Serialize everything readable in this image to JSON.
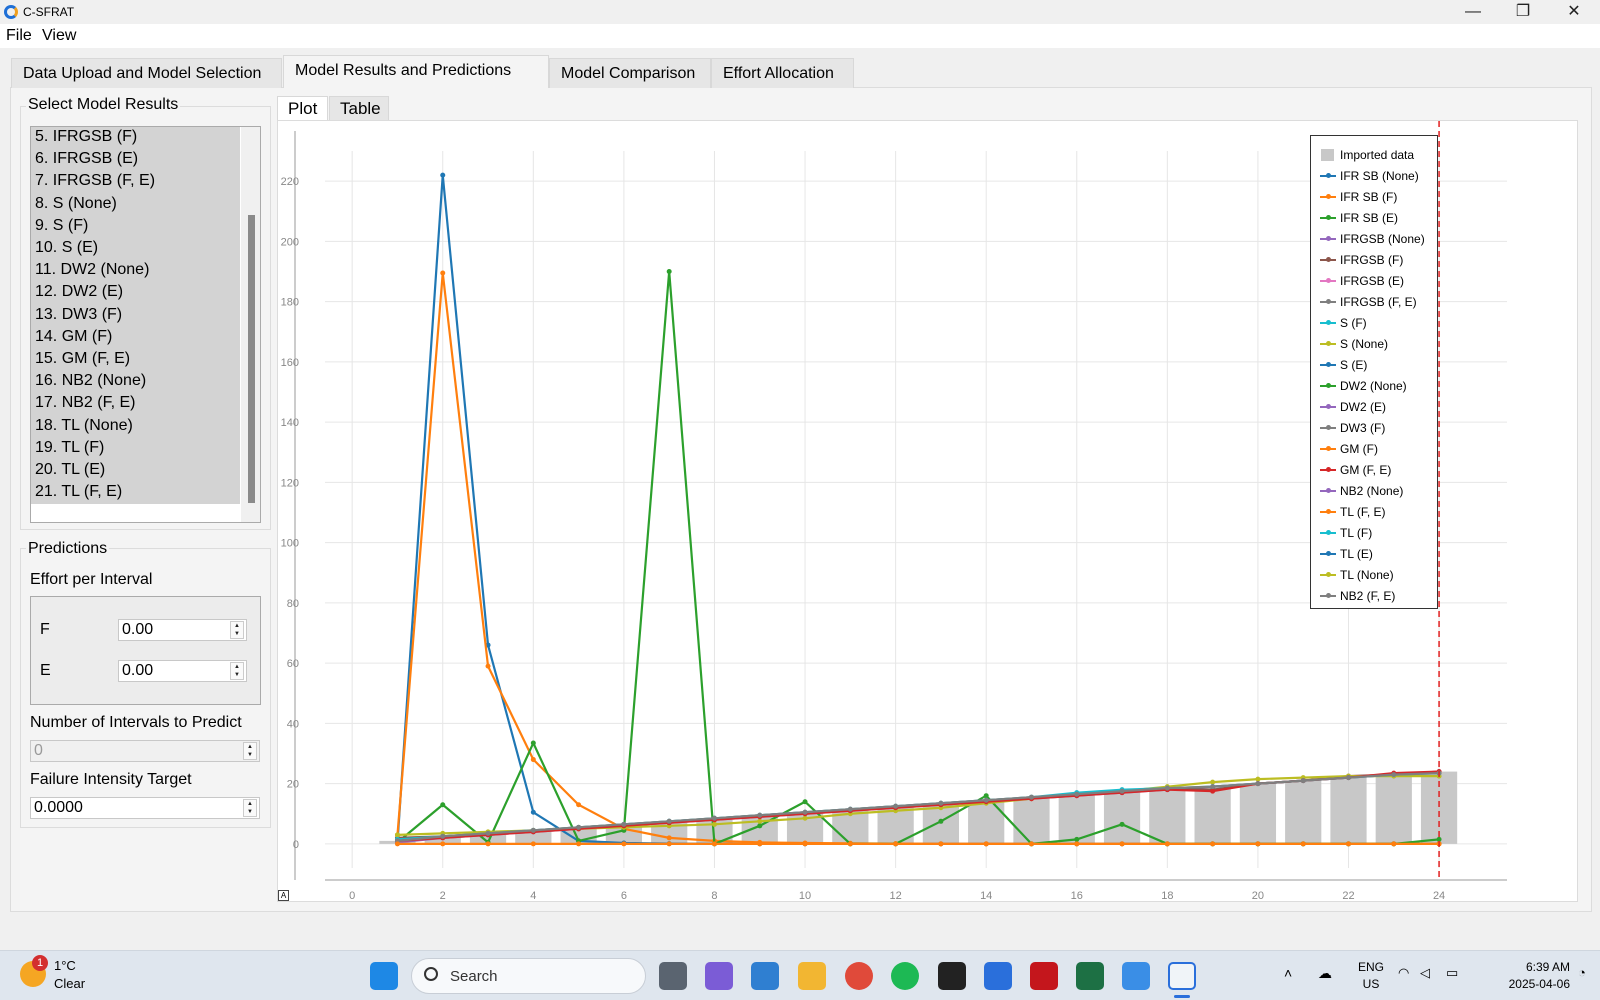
{
  "window": {
    "title": "C-SFRAT",
    "minimize": "—",
    "restore": "❐",
    "close": "✕"
  },
  "menu": {
    "file": "File",
    "view": "View"
  },
  "tabs": [
    {
      "label": "Data Upload and Model Selection"
    },
    {
      "label": "Model Results and Predictions"
    },
    {
      "label": "Model Comparison"
    },
    {
      "label": "Effort Allocation"
    }
  ],
  "left_panel": {
    "select_title": "Select Model Results",
    "models": [
      "5. IFRGSB (F)",
      "6. IFRGSB (E)",
      "7. IFRGSB (F, E)",
      "8. S (None)",
      "9. S (F)",
      "10. S (E)",
      "11. DW2 (None)",
      "12. DW2 (E)",
      "13. DW3 (F)",
      "14. GM (F)",
      "15. GM (F, E)",
      "16. NB2 (None)",
      "17. NB2 (F, E)",
      "18. TL (None)",
      "19. TL (F)",
      "20. TL (E)",
      "21. TL (F, E)"
    ],
    "predictions_title": "Predictions",
    "effort_title": "Effort per Interval",
    "f_label": "F",
    "f_value": "0.00",
    "e_label": "E",
    "e_value": "0.00",
    "intervals_label": "Number of Intervals to Predict",
    "intervals_value": "0",
    "intensity_label": "Failure Intensity Target",
    "intensity_value": "0.0000"
  },
  "subtabs": {
    "plot": "Plot",
    "table": "Table"
  },
  "plot": {
    "corner": "A"
  },
  "legend": [
    {
      "label": "Imported data",
      "color": "#c8c8c8",
      "box": true
    },
    {
      "label": "IFR SB (None)",
      "color": "#1f77b4"
    },
    {
      "label": "IFR SB (F)",
      "color": "#ff7f0e"
    },
    {
      "label": "IFR SB (E)",
      "color": "#2ca02c"
    },
    {
      "label": "IFRGSB (None)",
      "color": "#9467bd"
    },
    {
      "label": "IFRGSB (F)",
      "color": "#8c564b"
    },
    {
      "label": "IFRGSB (E)",
      "color": "#e377c2"
    },
    {
      "label": "IFRGSB (F, E)",
      "color": "#7f7f7f"
    },
    {
      "label": "S (F)",
      "color": "#17becf"
    },
    {
      "label": "S (None)",
      "color": "#bcbd22"
    },
    {
      "label": "S (E)",
      "color": "#1f77b4"
    },
    {
      "label": "DW2 (None)",
      "color": "#2ca02c"
    },
    {
      "label": "DW2 (E)",
      "color": "#9467bd"
    },
    {
      "label": "DW3 (F)",
      "color": "#7f7f7f"
    },
    {
      "label": "GM (F)",
      "color": "#ff7f0e"
    },
    {
      "label": "GM (F, E)",
      "color": "#d62728"
    },
    {
      "label": "NB2 (None)",
      "color": "#9467bd"
    },
    {
      "label": "TL (F, E)",
      "color": "#ff7f0e"
    },
    {
      "label": "TL (F)",
      "color": "#17becf"
    },
    {
      "label": "TL (E)",
      "color": "#1f77b4"
    },
    {
      "label": "TL (None)",
      "color": "#bcbd22"
    },
    {
      "label": "NB2 (F, E)",
      "color": "#7f7f7f"
    }
  ],
  "chart_data": {
    "type": "line",
    "x_ticks": [
      0,
      2,
      4,
      6,
      8,
      10,
      12,
      14,
      16,
      18,
      20,
      22,
      24
    ],
    "y_ticks": [
      0,
      20,
      40,
      60,
      80,
      100,
      120,
      140,
      160,
      180,
      200,
      220
    ],
    "xlim": [
      -0.6,
      25.5
    ],
    "ylim": [
      -8,
      230
    ],
    "grid": true,
    "legend_position": "top-right",
    "vertical_marker_x": 24,
    "bars": {
      "name": "Imported data",
      "x": [
        1,
        2,
        3,
        4,
        5,
        6,
        7,
        8,
        9,
        10,
        11,
        12,
        13,
        14,
        15,
        16,
        17,
        18,
        19,
        20,
        21,
        22,
        23,
        24
      ],
      "values": [
        1,
        2,
        3,
        4,
        5,
        6,
        7,
        8,
        9,
        10,
        11,
        12,
        13,
        14,
        15,
        16,
        17,
        18,
        19,
        20,
        21,
        22,
        23,
        24
      ]
    },
    "series": [
      {
        "name": "IFR SB (None)",
        "color": "#1f77b4",
        "x": [
          1,
          2,
          3,
          4,
          5,
          6,
          7,
          8,
          9,
          10,
          11,
          12,
          13,
          14,
          15,
          16,
          17,
          18,
          19,
          20,
          21,
          22,
          23,
          24
        ],
        "values": [
          0.5,
          222,
          66,
          10.5,
          1,
          0.3,
          0.1,
          0,
          0,
          0,
          0,
          0,
          0,
          0,
          0,
          0,
          0,
          0,
          0,
          0,
          0,
          0,
          0,
          0
        ]
      },
      {
        "name": "IFR SB (F)",
        "color": "#ff7f0e",
        "x": [
          1,
          2,
          3,
          4,
          5,
          6,
          7,
          8,
          9,
          10,
          11,
          12,
          13,
          14,
          15,
          16,
          17,
          18,
          19,
          20,
          21,
          22,
          23,
          24
        ],
        "values": [
          3,
          189.5,
          59,
          28,
          13,
          5,
          2,
          1,
          0.5,
          0.3,
          0.2,
          0.1,
          0,
          0,
          0,
          0,
          0,
          0,
          0,
          0,
          0,
          0,
          0,
          0
        ]
      },
      {
        "name": "IFR SB (E)",
        "color": "#2ca02c",
        "x": [
          1,
          2,
          3,
          4,
          5,
          6,
          7,
          8,
          9,
          10,
          11,
          12,
          13,
          14,
          15,
          16,
          17,
          18,
          19,
          20,
          21,
          22,
          23,
          24
        ],
        "values": [
          0.5,
          13,
          0.5,
          33.5,
          1,
          4.5,
          190,
          0,
          6,
          14,
          0,
          0,
          7.5,
          16,
          0,
          1.5,
          6.5,
          0,
          0,
          0,
          0,
          0,
          0,
          1.5
        ]
      },
      {
        "name": "IFRGSB (None)",
        "color": "#9467bd",
        "x": [
          1,
          2,
          3,
          4,
          5,
          6,
          7,
          8,
          9,
          10,
          11,
          12,
          13,
          14,
          15,
          16,
          17,
          18,
          19,
          20,
          21,
          22,
          23,
          24
        ],
        "values": [
          0.5,
          2,
          3,
          4,
          5,
          6,
          7,
          8,
          9,
          10,
          11,
          12,
          13,
          14,
          15,
          16,
          17,
          18,
          19,
          20,
          21,
          22,
          23,
          24
        ]
      },
      {
        "name": "IFRGSB (F)",
        "color": "#8c564b",
        "x": [
          1,
          2,
          3,
          4,
          5,
          6,
          7,
          8,
          9,
          10,
          11,
          12,
          13,
          14,
          15,
          16,
          17,
          18,
          19,
          20,
          21,
          22,
          23,
          24
        ],
        "values": [
          2,
          2.5,
          3.5,
          4.5,
          5.5,
          6.5,
          7.5,
          8.5,
          9.5,
          10.5,
          11.5,
          12.5,
          13.5,
          14.5,
          15.5,
          16.5,
          17.5,
          18.5,
          18,
          20,
          21,
          22.5,
          23,
          24
        ]
      },
      {
        "name": "S (None)",
        "color": "#bcbd22",
        "x": [
          1,
          2,
          3,
          4,
          5,
          6,
          7,
          8,
          9,
          10,
          11,
          12,
          13,
          14,
          15,
          16,
          17,
          18,
          19,
          20,
          21,
          22,
          23,
          24
        ],
        "values": [
          3,
          3.5,
          4,
          4.5,
          5,
          5.5,
          6,
          6.5,
          7.5,
          8.5,
          10,
          11,
          12,
          13.5,
          15,
          16.5,
          17.5,
          19,
          20.5,
          21.5,
          22,
          22.5,
          22.5,
          22.5
        ]
      },
      {
        "name": "S (F)",
        "color": "#17becf",
        "x": [
          1,
          2,
          3,
          4,
          5,
          6,
          7,
          8,
          9,
          10,
          11,
          12,
          13,
          14,
          15,
          16,
          17,
          18,
          19,
          20,
          21,
          22,
          23,
          24
        ],
        "values": [
          1.5,
          2.5,
          3.5,
          4.5,
          5.5,
          6.5,
          7.5,
          8.5,
          9.5,
          10.5,
          11.5,
          12.5,
          13.5,
          14.5,
          15.5,
          17,
          18,
          18.5,
          19,
          20,
          21,
          22,
          23,
          23.5
        ]
      },
      {
        "name": "GM (F, E)",
        "color": "#d62728",
        "x": [
          1,
          2,
          3,
          4,
          5,
          6,
          7,
          8,
          9,
          10,
          11,
          12,
          13,
          14,
          15,
          16,
          17,
          18,
          19,
          20,
          21,
          22,
          23,
          24
        ],
        "values": [
          1,
          2,
          3,
          4,
          5,
          6,
          7,
          8,
          9,
          10,
          11,
          12,
          13,
          14,
          15,
          16,
          17,
          18,
          17.5,
          20,
          21,
          22,
          23.5,
          24
        ]
      },
      {
        "name": "IFRGSB (F, E)",
        "color": "#7f7f7f",
        "x": [
          1,
          2,
          3,
          4,
          5,
          6,
          7,
          8,
          9,
          10,
          11,
          12,
          13,
          14,
          15,
          16,
          17,
          18,
          19,
          20,
          21,
          22,
          23,
          24
        ],
        "values": [
          1,
          2.5,
          3.5,
          4.5,
          5.5,
          6.5,
          7.5,
          8.5,
          9.5,
          10.5,
          11.5,
          12.5,
          13.5,
          14.5,
          15.5,
          16.5,
          17.5,
          18.5,
          19,
          20,
          21,
          22,
          23,
          23.5
        ]
      },
      {
        "name": "TL (F, E)",
        "color": "#ff7f0e",
        "x": [
          1,
          2,
          3,
          4,
          5,
          6,
          7,
          8,
          9,
          10,
          11,
          12,
          13,
          14,
          15,
          16,
          17,
          18,
          19,
          20,
          21,
          22,
          23,
          24
        ],
        "values": [
          0,
          0,
          0,
          0,
          0,
          0,
          0,
          0,
          0,
          0,
          0,
          0,
          0,
          0,
          0,
          0,
          0,
          0,
          0,
          0,
          0,
          0,
          0,
          0
        ]
      }
    ]
  },
  "taskbar": {
    "weather_badge": "1",
    "temp": "1°C",
    "condition": "Clear",
    "search": "Search",
    "lang_top": "ENG",
    "lang_bottom": "US",
    "time": "6:39 AM",
    "date": "2025-04-06"
  }
}
